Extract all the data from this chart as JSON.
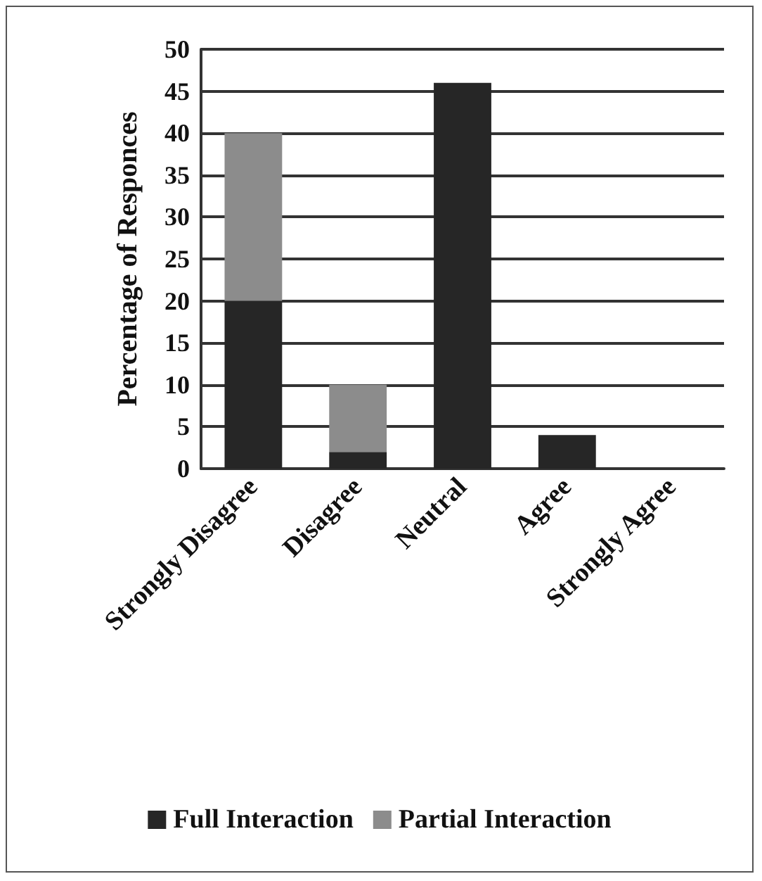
{
  "chart_data": {
    "type": "bar",
    "ylabel": "Percentage of Responces",
    "categories": [
      "Strongly Disagree",
      "Disagree",
      "Neutral",
      "Agree",
      "Strongly Agree"
    ],
    "series": [
      {
        "name": "Full Interaction",
        "color": "#262626",
        "values": [
          20,
          2,
          46,
          4,
          0
        ]
      },
      {
        "name": "Partial Interaction",
        "color": "#8c8c8c",
        "values": [
          20,
          8,
          0,
          0,
          0
        ]
      }
    ],
    "stacked": true,
    "ylim": [
      0,
      50
    ],
    "yticks": [
      0,
      5,
      10,
      15,
      20,
      25,
      30,
      35,
      40,
      45,
      50
    ],
    "grid": "y",
    "legend": "bottom"
  }
}
